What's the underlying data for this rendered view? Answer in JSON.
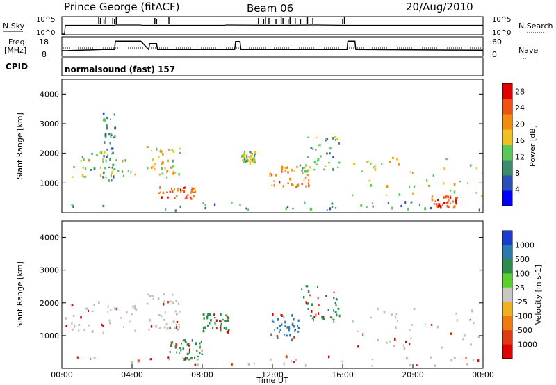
{
  "header": {
    "station": "Prince George (fitACF)",
    "beam": "Beam 06",
    "date": "20/Aug/2010"
  },
  "top_panels": {
    "nsky_label": "N.Sky",
    "nsky_ticks": [
      "10^5",
      "10^0"
    ],
    "nsearch_ticks": [
      "10^5",
      "10^0"
    ],
    "nsearch_label": "N.Search",
    "freq_label": "Freq.",
    "freq_unit": "[MHz]",
    "freq_ticks": [
      "18",
      "8"
    ],
    "nave_ticks": [
      "60",
      "0"
    ],
    "nave_label": "Nave",
    "cpid_label": "CPID",
    "cpid_value": "normalsound (fast) 157"
  },
  "colors": {
    "power": [
      "#0000ff",
      "#2b4fb8",
      "#3c8c6c",
      "#5ac85a",
      "#f0c020",
      "#f08c10",
      "#f05010",
      "#e00000"
    ],
    "velocity": [
      "#1c3cd0",
      "#2a7ab0",
      "#2c8c4c",
      "#5ad030",
      "#c8c8c0",
      "#c8c8c0",
      "#f0b020",
      "#f07a10",
      "#e03a10",
      "#e00000"
    ],
    "velocity_ground": "#c0c0b8"
  },
  "chart_data": [
    {
      "type": "line",
      "name": "N.Sky / N.Search",
      "x_unit": "hours UT",
      "ylim_log10": [
        0,
        5
      ],
      "x": [
        0,
        0.15,
        0.2,
        3,
        3.05,
        4.5,
        4.55,
        9.3,
        9.35,
        12.5,
        14.5,
        16.2,
        24
      ],
      "y_log10": [
        0,
        0,
        2.6,
        2.6,
        2.7,
        2.7,
        2.6,
        2.6,
        2.7,
        2.6,
        2.7,
        2.6,
        2.6
      ]
    },
    {
      "type": "line",
      "name": "Freq.",
      "x_unit": "hours UT",
      "ylim": [
        8,
        18
      ],
      "x": [
        0,
        0.2,
        2.3,
        3.0,
        3.05,
        4.5,
        4.95,
        5.0,
        5.4,
        5.45,
        9.5,
        9.85,
        9.9,
        10.15,
        10.2,
        15.8,
        16.25,
        16.3,
        16.7,
        16.75,
        24
      ],
      "y": [
        10.5,
        10.5,
        11.2,
        11.2,
        16.2,
        16.2,
        11.2,
        14.8,
        14.8,
        11.2,
        11.2,
        11.2,
        16.0,
        16.0,
        11.2,
        11.2,
        11.2,
        16.2,
        16.2,
        11.2,
        10.8
      ]
    },
    {
      "type": "heatmap",
      "name": "Power",
      "xlabel": "",
      "ylabel": "Slant Range [km]",
      "xlim": [
        0,
        24
      ],
      "ylim": [
        0,
        4500
      ],
      "yticks": [
        1000,
        2000,
        3000,
        4000
      ],
      "colorbar_label": "Power [dB]",
      "colorbar_ticks": [
        4,
        8,
        12,
        16,
        20,
        24,
        28
      ],
      "colorbar_range": [
        0,
        30
      ],
      "regions": [
        {
          "x": [
            0.2,
            4.2
          ],
          "y": [
            1100,
            2100
          ],
          "level": 14
        },
        {
          "x": [
            2.3,
            3.0
          ],
          "y": [
            1000,
            3400
          ],
          "level": 10
        },
        {
          "x": [
            4.8,
            6.7
          ],
          "y": [
            1200,
            2300
          ],
          "level": 16
        },
        {
          "x": [
            5.5,
            7.6
          ],
          "y": [
            500,
            900
          ],
          "level": 24
        },
        {
          "x": [
            10.2,
            11.0
          ],
          "y": [
            1700,
            2100
          ],
          "level": 14
        },
        {
          "x": [
            11.8,
            14.2
          ],
          "y": [
            900,
            1600
          ],
          "level": 22
        },
        {
          "x": [
            13.5,
            15.8
          ],
          "y": [
            1400,
            2700
          ],
          "level": 12
        },
        {
          "x": [
            16.5,
            24
          ],
          "y": [
            600,
            1900
          ],
          "level": 16
        },
        {
          "x": [
            21.0,
            22.5
          ],
          "y": [
            200,
            600
          ],
          "level": 26
        }
      ]
    },
    {
      "type": "heatmap",
      "name": "Velocity",
      "xlabel": "Time UT",
      "ylabel": "Slant Range [km]",
      "xlim": [
        0,
        24
      ],
      "ylim": [
        0,
        4500
      ],
      "yticks": [
        1000,
        2000,
        3000,
        4000
      ],
      "xticks": [
        "00:00",
        "04:00",
        "08:00",
        "12:00",
        "16:00",
        "20:00",
        "00:00"
      ],
      "colorbar_label": "Velocity [m s-1]",
      "colorbar_ticks": [
        1000,
        500,
        100,
        25,
        -25,
        -100,
        -500,
        -1000
      ],
      "regions": [
        {
          "x": [
            0.2,
            4.2
          ],
          "y": [
            1100,
            2100
          ],
          "velocity": 0
        },
        {
          "x": [
            4.8,
            6.7
          ],
          "y": [
            1200,
            2300
          ],
          "velocity": 0
        },
        {
          "x": [
            6.0,
            8.0
          ],
          "y": [
            300,
            900
          ],
          "velocity": 150
        },
        {
          "x": [
            8.0,
            9.5
          ],
          "y": [
            1100,
            1700
          ],
          "velocity": 200
        },
        {
          "x": [
            11.8,
            13.5
          ],
          "y": [
            900,
            1700
          ],
          "velocity": 800
        },
        {
          "x": [
            13.5,
            15.8
          ],
          "y": [
            1400,
            2600
          ],
          "velocity": 300
        },
        {
          "x": [
            16.5,
            24
          ],
          "y": [
            600,
            1900
          ],
          "velocity": 0
        }
      ]
    }
  ]
}
